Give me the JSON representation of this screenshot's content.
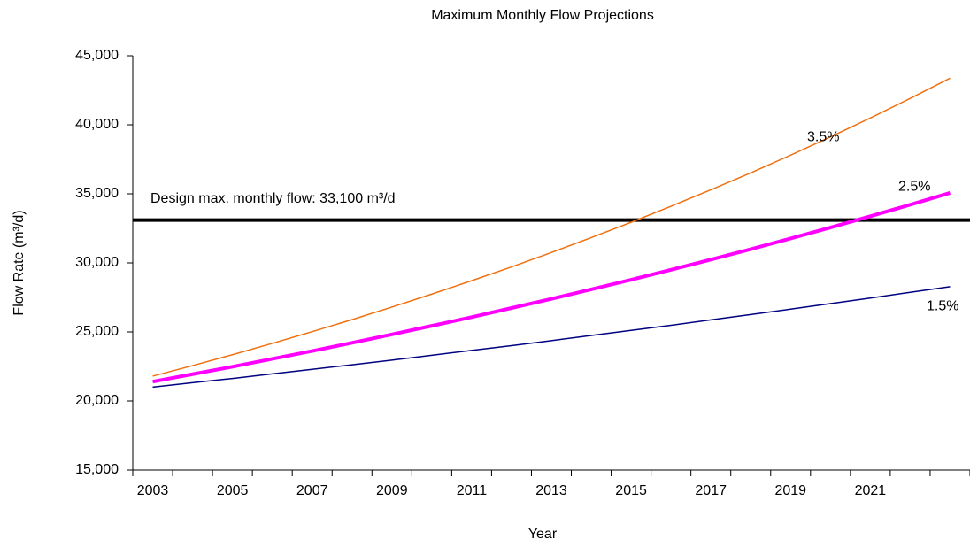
{
  "chart_data": {
    "type": "line",
    "title": "Maximum Monthly Flow Projections",
    "x_label": "Year",
    "y_label": "Flow Rate (m³/d)",
    "categories": [
      "2003",
      null,
      "2005",
      null,
      "2007",
      null,
      "2009",
      null,
      "2011",
      null,
      "2013",
      null,
      "2015",
      null,
      "2017",
      null,
      "2019",
      null,
      "2021",
      null,
      null
    ],
    "series": [
      {
        "name": "3.5%",
        "color": "#f07010",
        "width": 1.5,
        "values": [
          21800,
          22560,
          23350,
          24170,
          25020,
          25890,
          26800,
          27740,
          28710,
          29710,
          30750,
          31830,
          32940,
          34100,
          35290,
          36520,
          37800,
          39120,
          40490,
          41910,
          43380
        ]
      },
      {
        "name": "2.5%",
        "color": "#ff00ff",
        "width": 4,
        "values": [
          21400,
          21940,
          22480,
          23050,
          23620,
          24210,
          24820,
          25440,
          26070,
          26730,
          27390,
          28080,
          28780,
          29500,
          30240,
          30990,
          31770,
          32560,
          33380,
          34210,
          35070
        ]
      },
      {
        "name": "1.5%",
        "color": "#000080",
        "width": 1.5,
        "values": [
          21000,
          21320,
          21630,
          21960,
          22290,
          22620,
          22960,
          23310,
          23660,
          24010,
          24370,
          24740,
          25110,
          25480,
          25870,
          26260,
          26650,
          27050,
          27450,
          27870,
          28280
        ]
      }
    ],
    "reference_lines": [
      {
        "value": 33100,
        "label": "Design max. monthly flow: 33,100 m³/d",
        "color": "#000000"
      }
    ],
    "ylim": [
      15000,
      45000
    ],
    "yticks": [
      {
        "value": 15000,
        "label": "15,000"
      },
      {
        "value": 20000,
        "label": "20,000"
      },
      {
        "value": 25000,
        "label": "25,000"
      },
      {
        "value": 30000,
        "label": "30,000"
      },
      {
        "value": 35000,
        "label": "35,000"
      },
      {
        "value": 40000,
        "label": "40,000"
      },
      {
        "value": 45000,
        "label": "45,000"
      }
    ],
    "grid": false
  }
}
